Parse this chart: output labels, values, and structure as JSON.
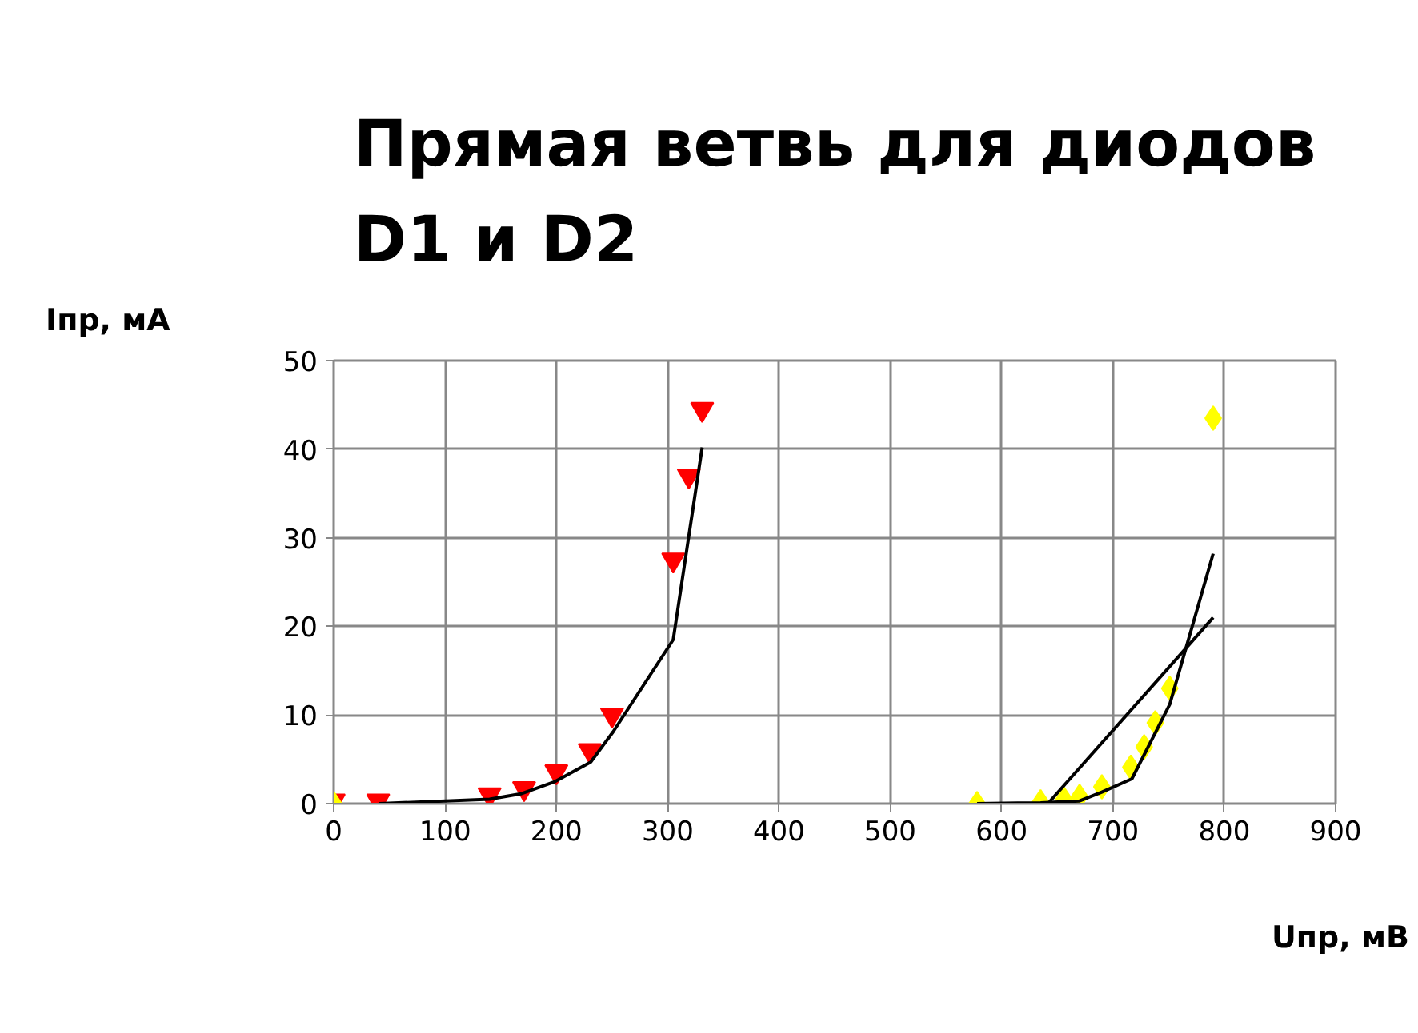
{
  "chart_data": {
    "type": "scatter",
    "title": "Прямая ветвь для диодов\nD1 и D2",
    "xlabel": "Uпр, мВ",
    "ylabel": "Iпр, мА",
    "xlim": [
      0,
      900
    ],
    "ylim": [
      0,
      50
    ],
    "xticks": [
      0,
      100,
      200,
      300,
      400,
      500,
      600,
      700,
      800,
      900
    ],
    "yticks": [
      0,
      10,
      20,
      30,
      40,
      50
    ],
    "grid": true,
    "series": [
      {
        "marker": "triangle_down",
        "color": "#ff0000",
        "x": [
          0,
          40,
          140,
          171,
          200,
          230,
          250,
          305,
          319,
          331
        ],
        "values": [
          0.3,
          0.3,
          1,
          1.7,
          3.6,
          6,
          10,
          27.5,
          37,
          44.5
        ]
      },
      {
        "type": "line",
        "marker": "none",
        "color": "#000000",
        "x": [
          41,
          140,
          168,
          199,
          231,
          251,
          305,
          331
        ],
        "values": [
          0,
          0.5,
          1.1,
          2.5,
          4.7,
          8.1,
          18.5,
          40.2
        ]
      },
      {
        "marker": "diamond",
        "color": "#ffff00",
        "x": [
          0,
          578,
          635,
          656,
          670,
          690,
          716,
          728,
          738,
          751,
          790
        ],
        "values": [
          0,
          0,
          0.2,
          0.5,
          0.8,
          1.9,
          4.1,
          6.4,
          9.1,
          13,
          43.5
        ]
      },
      {
        "type": "line",
        "marker": "none",
        "color": "#000000",
        "x": [
          578,
          635,
          670,
          690,
          717,
          751,
          790
        ],
        "values": [
          0,
          0.1,
          0.3,
          1.3,
          2.8,
          11.2,
          28.2
        ]
      },
      {
        "type": "line",
        "marker": "none",
        "color": "#000000",
        "x": [
          643,
          790
        ],
        "values": [
          0.2,
          21
        ]
      }
    ]
  }
}
